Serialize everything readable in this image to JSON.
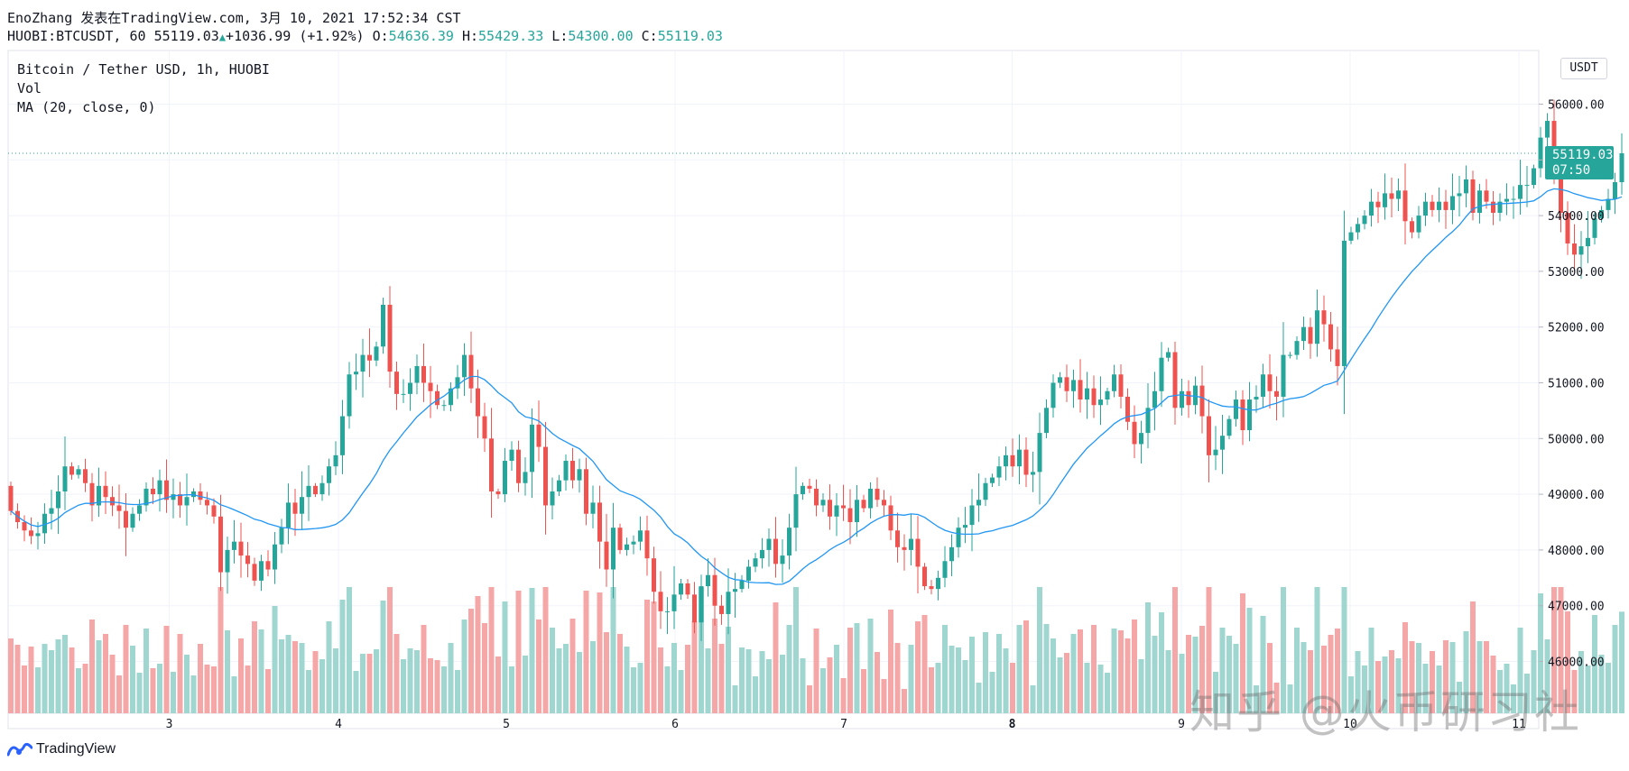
{
  "header": {
    "line1": "EnoZhang 发表在TradingView.com, 3月 10, 2021 17:52:34 CST",
    "symbol": "HUOBI:BTCUSDT, 60",
    "last": "55119.03",
    "change": "+1036.99 (+1.92%)",
    "o_label": "O:",
    "o": "54636.39",
    "h_label": "H:",
    "h": "55429.33",
    "l_label": "L:",
    "l": "54300.00",
    "c_label": "C:",
    "c": "55119.03"
  },
  "legend": {
    "title": "Bitcoin / Tether USD, 1h, HUOBI",
    "vol": "Vol",
    "ma": "MA (20, close, 0)"
  },
  "axis": {
    "unit": "USDT",
    "y_ticks": [
      "56000.00",
      "55000.00",
      "54000.00",
      "53000.00",
      "52000.00",
      "51000.00",
      "50000.00",
      "49000.00",
      "48000.00",
      "47000.00",
      "46000.00"
    ],
    "x_ticks": [
      "3",
      "4",
      "5",
      "6",
      "7",
      "8",
      "9",
      "10",
      "11"
    ],
    "current_price": "55119.03",
    "countdown": "07:50"
  },
  "footer": {
    "brand": "TradingView"
  },
  "watermark": "知乎 @火币研习社",
  "colors": {
    "up": "#26a69a",
    "down": "#ef5350",
    "ma": "#2196f3",
    "vol_up": "#9fd6d0",
    "vol_down": "#f4a7a6"
  },
  "chart_data": {
    "type": "candlestick",
    "symbol": "HUOBI:BTCUSDT",
    "interval": "1h",
    "x_type": "date",
    "x_start": "2021-03-02",
    "y_range": [
      45400,
      56700
    ],
    "y_unit": "USDT",
    "close": [
      48700,
      48500,
      48350,
      48250,
      48300,
      48650,
      48750,
      49050,
      49500,
      49350,
      49450,
      49200,
      48800,
      49150,
      48950,
      48800,
      48700,
      48400,
      48650,
      48800,
      49100,
      49000,
      49250,
      48900,
      49000,
      48800,
      48950,
      49050,
      48900,
      48800,
      48600,
      47600,
      48000,
      48150,
      47900,
      47750,
      47450,
      47800,
      47650,
      48100,
      48400,
      48850,
      48650,
      48950,
      49150,
      49000,
      49200,
      49500,
      49700,
      50400,
      51150,
      51200,
      51500,
      51400,
      51650,
      52400,
      51200,
      50800,
      50800,
      51000,
      51300,
      51000,
      50850,
      50600,
      50600,
      50900,
      51100,
      51500,
      50900,
      50400,
      50000,
      49050,
      49000,
      49600,
      49800,
      49200,
      49400,
      50250,
      49850,
      48800,
      49050,
      49250,
      49600,
      49250,
      49450,
      48650,
      48850,
      48150,
      47650,
      48400,
      48000,
      48100,
      48150,
      48350,
      47850,
      47250,
      46900,
      46900,
      47200,
      47400,
      47200,
      46700,
      47350,
      47550,
      47000,
      46850,
      47250,
      47300,
      47450,
      47700,
      47850,
      48000,
      48200,
      47750,
      47900,
      48400,
      49000,
      49150,
      49100,
      48800,
      48900,
      48600,
      48800,
      48750,
      48500,
      48900,
      48750,
      49100,
      48900,
      48800,
      48350,
      48050,
      48000,
      48200,
      47700,
      47350,
      47300,
      47500,
      47800,
      48050,
      48400,
      48450,
      48800,
      48900,
      49200,
      49300,
      49500,
      49700,
      49500,
      49800,
      49350,
      49400,
      50100,
      50550,
      51000,
      51100,
      50850,
      51050,
      50700,
      50900,
      50600,
      50700,
      50850,
      51150,
      50750,
      50300,
      49900,
      50100,
      50550,
      50850,
      51450,
      51550,
      50550,
      50850,
      50600,
      50950,
      50400,
      49700,
      49800,
      50050,
      50350,
      50700,
      50150,
      50700,
      50750,
      51150,
      50850,
      50750,
      51500,
      51500,
      51750,
      52000,
      51700,
      52300,
      52050,
      51600,
      51300,
      53550,
      53700,
      53850,
      54000,
      54250,
      54150,
      54400,
      54300,
      54450,
      53900,
      53700,
      54000,
      54250,
      54100,
      54250,
      54100,
      54350,
      54400,
      54650,
      54050,
      54450,
      54250,
      54050,
      54250,
      54300,
      54300,
      54550,
      54550,
      54850,
      55400,
      55700,
      54800,
      54050,
      53500,
      53300,
      53450,
      53600,
      53950,
      54100,
      54300,
      54600,
      55119.03
    ]
  }
}
